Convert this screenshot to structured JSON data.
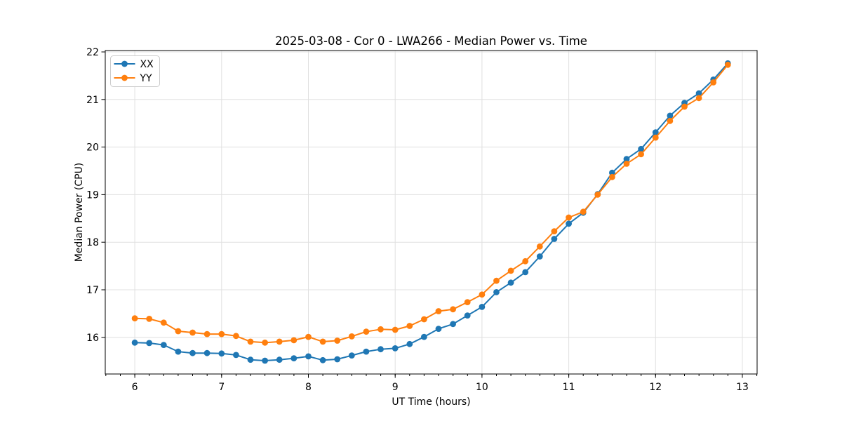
{
  "chart_data": {
    "type": "line",
    "title": "2025-03-08 - Cor 0 - LWA266 - Median Power vs. Time",
    "xlabel": "UT Time (hours)",
    "ylabel": "Median Power (CPU)",
    "xlim": [
      5.66,
      13.17
    ],
    "ylim": [
      15.23,
      22.03
    ],
    "xticks": [
      6,
      7,
      8,
      9,
      10,
      11,
      12,
      13
    ],
    "yticks": [
      16,
      17,
      18,
      19,
      20,
      21,
      22
    ],
    "x_minor_step": 0.16667,
    "grid": true,
    "legend_position": "upper-left",
    "marker": "circle",
    "x": [
      6.0,
      6.1667,
      6.3333,
      6.5,
      6.6667,
      6.8333,
      7.0,
      7.1667,
      7.3333,
      7.5,
      7.6667,
      7.8333,
      8.0,
      8.1667,
      8.3333,
      8.5,
      8.6667,
      8.8333,
      9.0,
      9.1667,
      9.3333,
      9.5,
      9.6667,
      9.8333,
      10.0,
      10.1667,
      10.3333,
      10.5,
      10.6667,
      10.8333,
      11.0,
      11.1667,
      11.3333,
      11.5,
      11.6667,
      11.8333,
      12.0,
      12.1667,
      12.3333,
      12.5,
      12.6667,
      12.8333
    ],
    "series": [
      {
        "name": "XX",
        "color": "#1f77b4",
        "values": [
          15.89,
          15.88,
          15.84,
          15.7,
          15.67,
          15.67,
          15.66,
          15.63,
          15.53,
          15.51,
          15.53,
          15.56,
          15.6,
          15.52,
          15.54,
          15.62,
          15.7,
          15.75,
          15.77,
          15.86,
          16.01,
          16.18,
          16.28,
          16.46,
          16.64,
          16.95,
          17.15,
          17.37,
          17.7,
          18.07,
          18.39,
          18.62,
          19.01,
          19.46,
          19.75,
          19.96,
          20.31,
          20.66,
          20.93,
          21.13,
          21.42,
          21.76
        ]
      },
      {
        "name": "YY",
        "color": "#ff7f0e",
        "values": [
          16.4,
          16.39,
          16.31,
          16.13,
          16.1,
          16.07,
          16.07,
          16.03,
          15.91,
          15.89,
          15.91,
          15.94,
          16.01,
          15.91,
          15.93,
          16.02,
          16.12,
          16.17,
          16.16,
          16.24,
          16.38,
          16.55,
          16.59,
          16.74,
          16.9,
          17.19,
          17.4,
          17.6,
          17.91,
          18.23,
          18.52,
          18.64,
          19.0,
          19.37,
          19.65,
          19.85,
          20.2,
          20.55,
          20.85,
          21.03,
          21.36,
          21.73
        ]
      }
    ]
  },
  "colors": {
    "background": "#ffffff",
    "grid": "#e0e0e0",
    "spine": "#000000",
    "text": "#000000",
    "series_xx": "#1f77b4",
    "series_yy": "#ff7f0e"
  }
}
